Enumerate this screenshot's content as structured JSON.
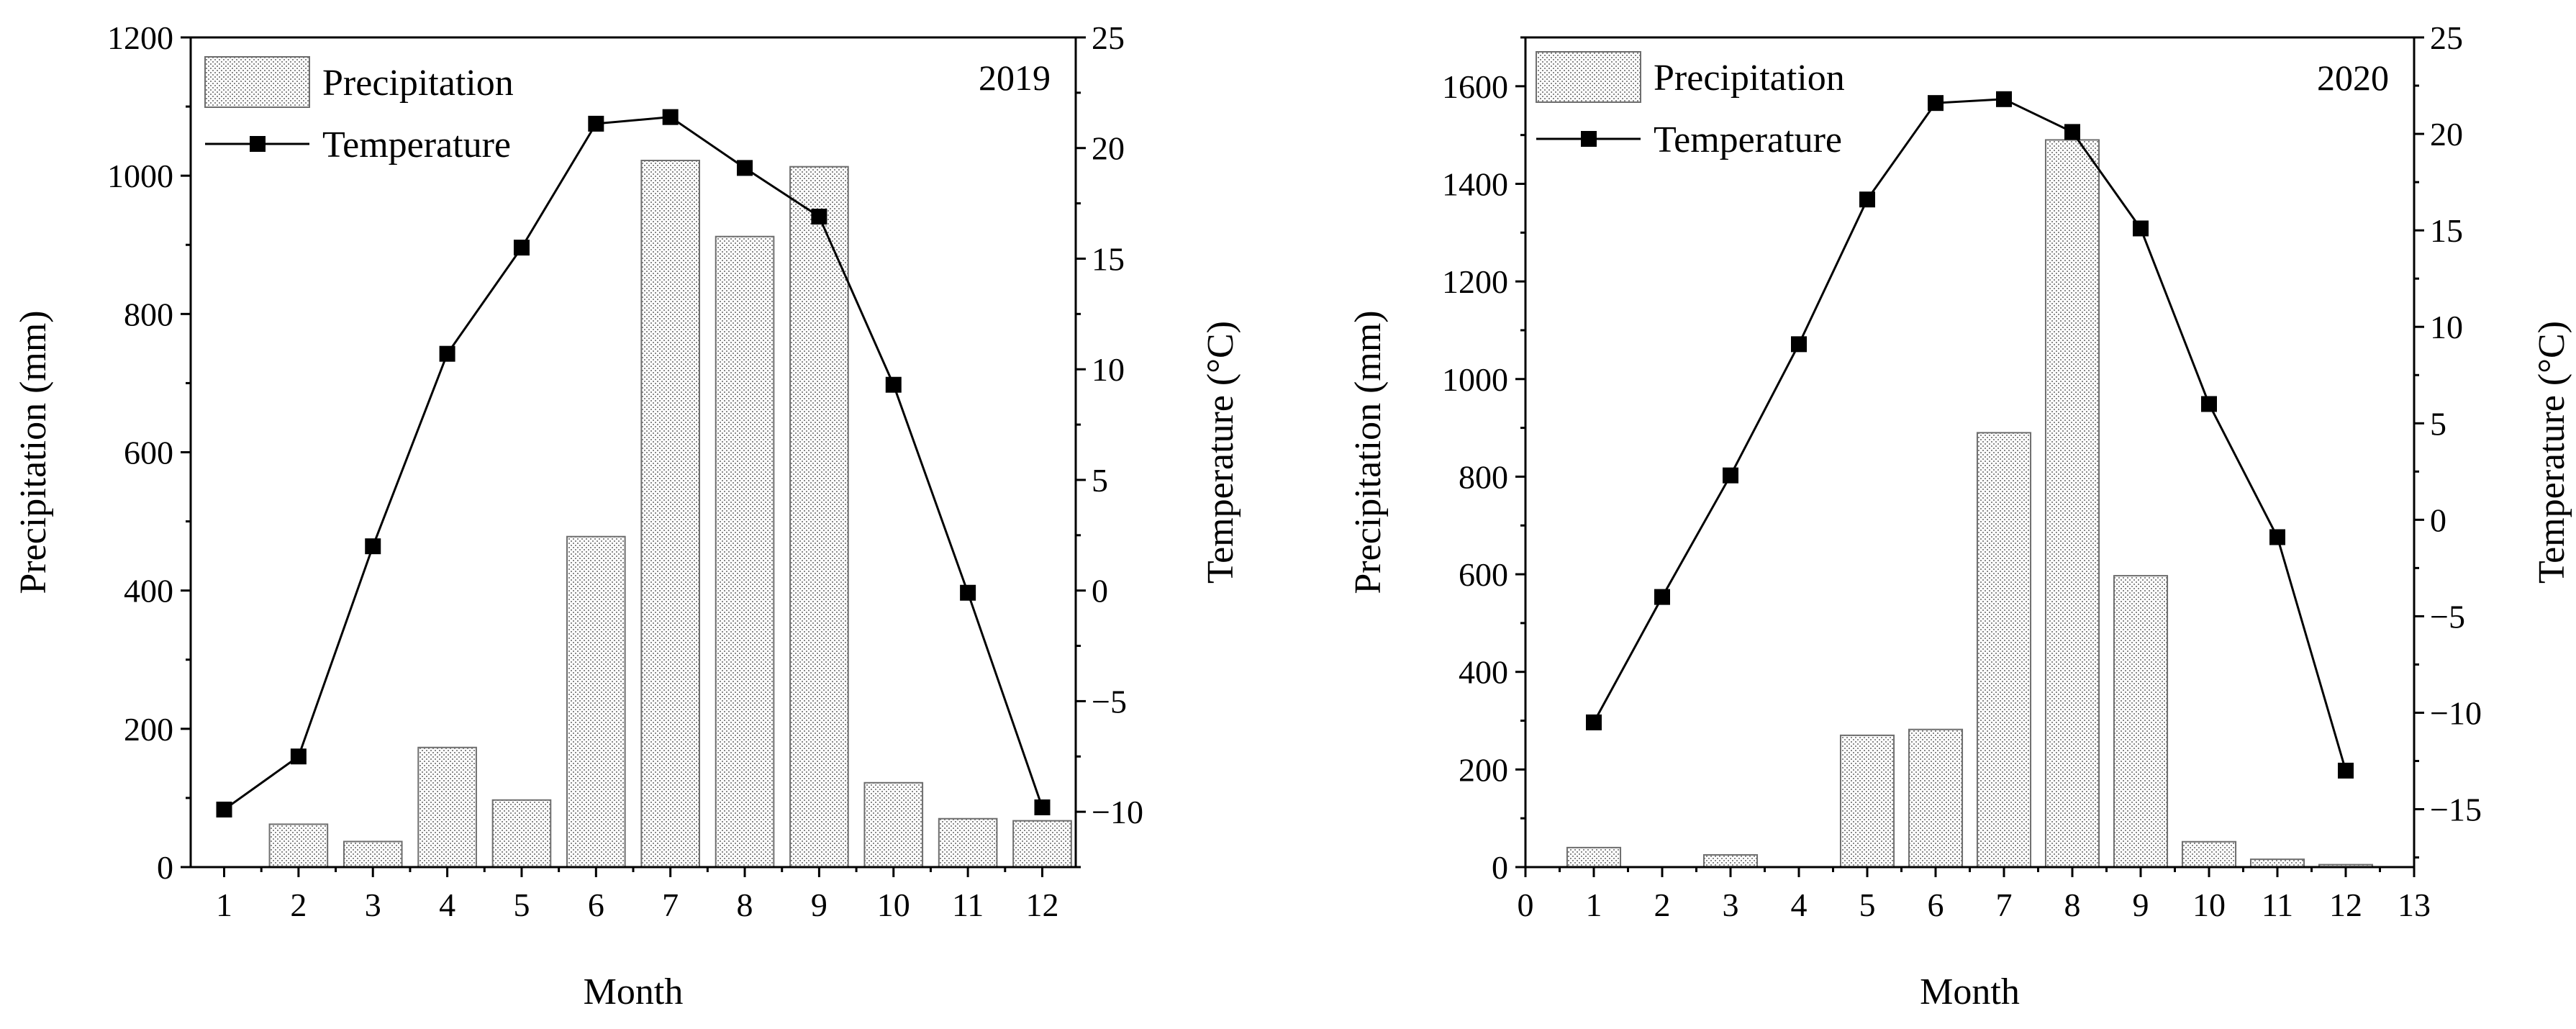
{
  "chart_data": [
    {
      "type": "bar+line",
      "year_label": "2019",
      "xlabel": "Month",
      "ylabel_left": "Precipitation (mm)",
      "ylabel_right": "Temperature (°C)",
      "x_ticks": [
        "1",
        "2",
        "3",
        "4",
        "5",
        "6",
        "7",
        "8",
        "9",
        "10",
        "11",
        "12"
      ],
      "x_range": [
        0.55,
        12.45
      ],
      "y_left_range": [
        0,
        1200
      ],
      "y_left_ticks": [
        "0",
        "200",
        "400",
        "600",
        "800",
        "1000",
        "1200"
      ],
      "y_right_range": [
        -12.5,
        25
      ],
      "y_right_ticks": [
        "−10",
        "−5",
        "0",
        "5",
        "10",
        "15",
        "20",
        "25"
      ],
      "legend": {
        "precipitation": "Precipitation",
        "temperature": "Temperature",
        "position": "top-left"
      },
      "series": [
        {
          "name": "Precipitation",
          "kind": "bar",
          "axis": "left",
          "x": [
            2,
            3,
            4,
            5,
            6,
            7,
            8,
            9,
            10,
            11,
            12
          ],
          "values": [
            62,
            37,
            173,
            97,
            478,
            1022,
            912,
            1013,
            122,
            70,
            67
          ]
        },
        {
          "name": "Temperature",
          "kind": "line",
          "axis": "right",
          "x": [
            1,
            2,
            3,
            4,
            5,
            6,
            7,
            8,
            9,
            10,
            11,
            12
          ],
          "values": [
            -9.9,
            -7.5,
            2.0,
            10.7,
            15.5,
            21.1,
            21.4,
            19.1,
            16.9,
            9.3,
            -0.1,
            -9.8
          ]
        }
      ]
    },
    {
      "type": "bar+line",
      "year_label": "2020",
      "xlabel": "Month",
      "ylabel_left": "Precipitation (mm)",
      "ylabel_right": "Temperature (°C)",
      "x_ticks": [
        "0",
        "1",
        "2",
        "3",
        "4",
        "5",
        "6",
        "7",
        "8",
        "9",
        "10",
        "11",
        "12",
        "13"
      ],
      "x_range": [
        0,
        13
      ],
      "y_left_range": [
        0,
        1700
      ],
      "y_left_ticks": [
        "0",
        "200",
        "400",
        "600",
        "800",
        "1000",
        "1200",
        "1400",
        "1600"
      ],
      "y_right_range": [
        -18,
        25
      ],
      "y_right_ticks": [
        "−15",
        "−10",
        "−5",
        "0",
        "5",
        "10",
        "15",
        "20",
        "25"
      ],
      "legend": {
        "precipitation": "Precipitation",
        "temperature": "Temperature",
        "position": "top-left"
      },
      "series": [
        {
          "name": "Precipitation",
          "kind": "bar",
          "axis": "left",
          "x": [
            1,
            2,
            3,
            4,
            5,
            6,
            7,
            8,
            9,
            10,
            11,
            12
          ],
          "values": [
            40,
            0,
            25,
            0,
            270,
            282,
            890,
            1490,
            597,
            52,
            16,
            5
          ]
        },
        {
          "name": "Temperature",
          "kind": "line",
          "axis": "right",
          "x": [
            1,
            2,
            3,
            4,
            5,
            6,
            7,
            8,
            9,
            10,
            11,
            12
          ],
          "values": [
            -10.5,
            -4.0,
            2.3,
            9.1,
            16.6,
            21.6,
            21.8,
            20.1,
            15.1,
            6.0,
            -0.9,
            -13.0
          ]
        }
      ]
    }
  ]
}
